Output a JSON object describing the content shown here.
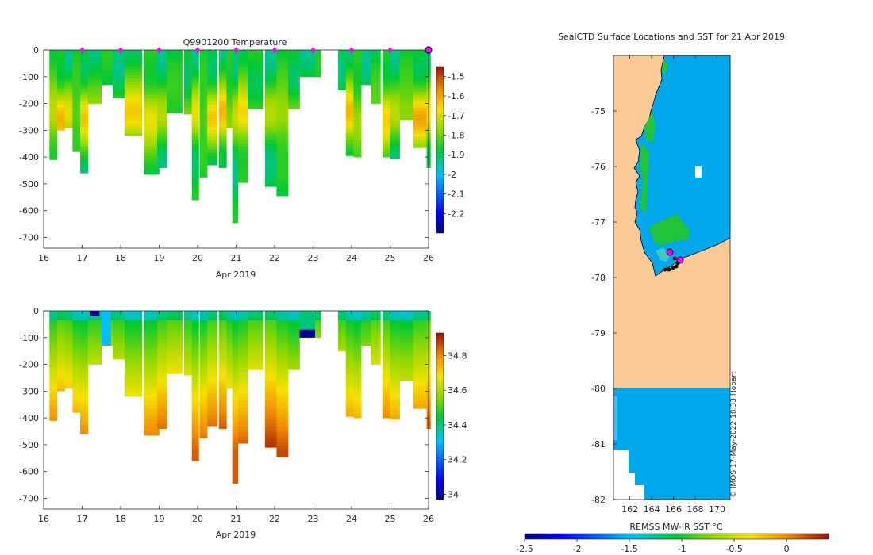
{
  "chart_data": [
    {
      "type": "heatmap",
      "title": "Q9901200  Temperature",
      "xlabel": "Apr 2019",
      "ylabel": "",
      "xlim": [
        16,
        26
      ],
      "ylim": [
        -740,
        0
      ],
      "xticks": [
        "16",
        "17",
        "18",
        "19",
        "20",
        "21",
        "22",
        "23",
        "24",
        "25",
        "26"
      ],
      "yticks": [
        "0",
        "-100",
        "-200",
        "-300",
        "-400",
        "-500",
        "-600",
        "-700"
      ],
      "colorbar": {
        "min": -2.3,
        "max": -1.45,
        "ticks": [
          "-1.5",
          "-1.6",
          "-1.7",
          "-1.8",
          "-1.9",
          "-2",
          "-2.1",
          "-2.2"
        ]
      },
      "surface_markers": [
        "17",
        "18",
        "19",
        "20",
        "21",
        "22",
        "23",
        "24",
        "25"
      ],
      "current_marker": "26"
    },
    {
      "type": "heatmap",
      "title": "",
      "xlabel": "Apr 2019",
      "ylabel": "",
      "xlim": [
        16,
        26
      ],
      "ylim": [
        -740,
        0
      ],
      "xticks": [
        "16",
        "17",
        "18",
        "19",
        "20",
        "21",
        "22",
        "23",
        "24",
        "25",
        "26"
      ],
      "yticks": [
        "0",
        "-100",
        "-200",
        "-300",
        "-400",
        "-500",
        "-600",
        "-700"
      ],
      "colorbar": {
        "min": 33.97,
        "max": 34.93,
        "ticks": [
          "34.8",
          "34.6",
          "34.4",
          "34.2",
          "34"
        ]
      }
    },
    {
      "type": "heatmap",
      "title": "SealCTD Surface Locations and SST for 21 Apr 2019",
      "xlabel": "",
      "ylabel": "",
      "xlim": [
        160.5,
        171.2
      ],
      "ylim": [
        -82,
        -74
      ],
      "xticks": [
        "162",
        "164",
        "166",
        "168",
        "170"
      ],
      "yticks": [
        "-75",
        "-76",
        "-77",
        "-78",
        "-79",
        "-80",
        "-81",
        "-82"
      ],
      "colorbar": {
        "label": "REMSS MW-IR SST °C",
        "min": -2.5,
        "max": 0.4,
        "ticks": [
          "-2.5",
          "-2",
          "-1.5",
          "-1",
          "-0.5",
          "0"
        ]
      },
      "stamp": "© IMOS 17-May-2022 18:33 Hobart"
    }
  ],
  "casts": [
    {
      "d": 16.15,
      "w": 0.2,
      "z": 410
    },
    {
      "d": 16.35,
      "w": 0.2,
      "z": 300
    },
    {
      "d": 16.55,
      "w": 0.2,
      "z": 290
    },
    {
      "d": 16.75,
      "w": 0.2,
      "z": 380
    },
    {
      "d": 16.95,
      "w": 0.2,
      "z": 460
    },
    {
      "d": 17.15,
      "w": 0.35,
      "z": 200
    },
    {
      "d": 17.5,
      "w": 0.3,
      "z": 130
    },
    {
      "d": 17.8,
      "w": 0.3,
      "z": 180
    },
    {
      "d": 18.1,
      "w": 0.45,
      "z": 320
    },
    {
      "d": 18.6,
      "w": 0.4,
      "z": 465
    },
    {
      "d": 18.95,
      "w": 0.25,
      "z": 440
    },
    {
      "d": 19.2,
      "w": 0.4,
      "z": 235
    },
    {
      "d": 19.65,
      "w": 0.25,
      "z": 240
    },
    {
      "d": 19.85,
      "w": 0.18,
      "z": 560
    },
    {
      "d": 20.05,
      "w": 0.2,
      "z": 475
    },
    {
      "d": 20.25,
      "w": 0.25,
      "z": 430
    },
    {
      "d": 20.55,
      "w": 0.2,
      "z": 440
    },
    {
      "d": 20.75,
      "w": 0.15,
      "z": 290
    },
    {
      "d": 20.9,
      "w": 0.15,
      "z": 645
    },
    {
      "d": 21.05,
      "w": 0.25,
      "z": 495
    },
    {
      "d": 21.3,
      "w": 0.4,
      "z": 220
    },
    {
      "d": 21.75,
      "w": 0.35,
      "z": 510
    },
    {
      "d": 22.05,
      "w": 0.3,
      "z": 545
    },
    {
      "d": 22.35,
      "w": 0.3,
      "z": 220
    },
    {
      "d": 22.65,
      "w": 0.4,
      "z": 100
    },
    {
      "d": 23.05,
      "w": 0.15,
      "z": 100
    },
    {
      "d": 23.65,
      "w": 0.2,
      "z": 150
    },
    {
      "d": 23.85,
      "w": 0.2,
      "z": 395
    },
    {
      "d": 24.05,
      "w": 0.2,
      "z": 400
    },
    {
      "d": 24.25,
      "w": 0.25,
      "z": 130
    },
    {
      "d": 24.5,
      "w": 0.25,
      "z": 200
    },
    {
      "d": 24.8,
      "w": 0.2,
      "z": 400
    },
    {
      "d": 25.0,
      "w": 0.25,
      "z": 405
    },
    {
      "d": 25.25,
      "w": 0.35,
      "z": 260
    },
    {
      "d": 25.6,
      "w": 0.35,
      "z": 365
    },
    {
      "d": 25.95,
      "w": 0.1,
      "z": 440
    }
  ]
}
